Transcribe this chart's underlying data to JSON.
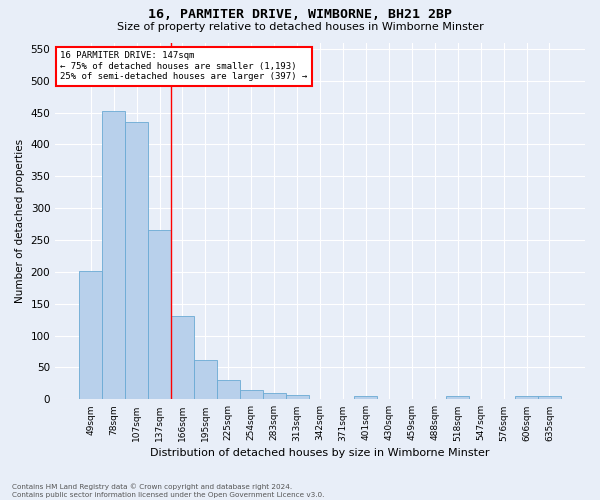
{
  "title1": "16, PARMITER DRIVE, WIMBORNE, BH21 2BP",
  "title2": "Size of property relative to detached houses in Wimborne Minster",
  "xlabel": "Distribution of detached houses by size in Wimborne Minster",
  "ylabel": "Number of detached properties",
  "bar_labels": [
    "49sqm",
    "78sqm",
    "107sqm",
    "137sqm",
    "166sqm",
    "195sqm",
    "225sqm",
    "254sqm",
    "283sqm",
    "313sqm",
    "342sqm",
    "371sqm",
    "401sqm",
    "430sqm",
    "459sqm",
    "488sqm",
    "518sqm",
    "547sqm",
    "576sqm",
    "606sqm",
    "635sqm"
  ],
  "bar_values": [
    201,
    452,
    435,
    265,
    130,
    62,
    30,
    15,
    10,
    7,
    1,
    0,
    5,
    1,
    0,
    0,
    5,
    0,
    0,
    5,
    5
  ],
  "bar_color": "#b8d0eb",
  "bar_edge_color": "#6aaad4",
  "annotation_text1": "16 PARMITER DRIVE: 147sqm",
  "annotation_text2": "← 75% of detached houses are smaller (1,193)",
  "annotation_text3": "25% of semi-detached houses are larger (397) →",
  "annotation_box_color": "white",
  "annotation_box_edge": "red",
  "vline_color": "red",
  "vline_x_index": 3.5,
  "ylim": [
    0,
    560
  ],
  "yticks": [
    0,
    50,
    100,
    150,
    200,
    250,
    300,
    350,
    400,
    450,
    500,
    550
  ],
  "background_color": "#e8eef8",
  "grid_color": "white",
  "footnote1": "Contains HM Land Registry data © Crown copyright and database right 2024.",
  "footnote2": "Contains public sector information licensed under the Open Government Licence v3.0."
}
